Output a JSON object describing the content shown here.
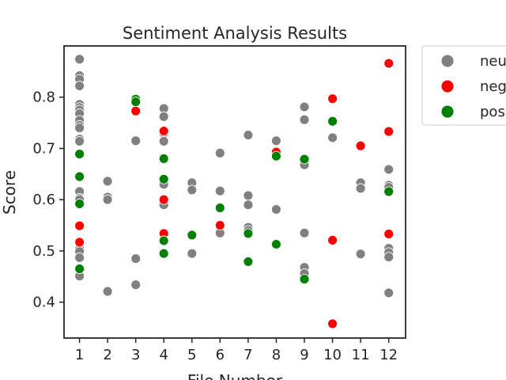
{
  "chart_data": {
    "type": "scatter",
    "title": "Sentiment Analysis Results",
    "xlabel": "File Number",
    "ylabel": "Score",
    "x_ticks": [
      1,
      2,
      3,
      4,
      5,
      6,
      7,
      8,
      9,
      10,
      11,
      12
    ],
    "y_ticks": [
      "0.4",
      "0.5",
      "0.6",
      "0.7",
      "0.8"
    ],
    "xlim": [
      0.45,
      12.6
    ],
    "ylim": [
      0.33,
      0.9
    ],
    "grid": false,
    "legend_position": "outside-upper-right",
    "colors": {
      "neu": "#808080",
      "neg": "#ff0000",
      "pos": "#008000"
    },
    "series": [
      {
        "name": "neu",
        "points": [
          [
            1,
            0.874
          ],
          [
            1,
            0.842
          ],
          [
            1,
            0.835
          ],
          [
            1,
            0.822
          ],
          [
            1,
            0.786
          ],
          [
            1,
            0.78
          ],
          [
            1,
            0.775
          ],
          [
            1,
            0.768
          ],
          [
            1,
            0.755
          ],
          [
            1,
            0.745
          ],
          [
            1,
            0.74
          ],
          [
            1,
            0.718
          ],
          [
            1,
            0.714
          ],
          [
            1,
            0.616
          ],
          [
            1,
            0.603
          ],
          [
            1,
            0.6
          ],
          [
            1,
            0.504
          ],
          [
            1,
            0.499
          ],
          [
            1,
            0.487
          ],
          [
            1,
            0.451
          ],
          [
            2,
            0.636
          ],
          [
            2,
            0.605
          ],
          [
            2,
            0.6
          ],
          [
            2,
            0.421
          ],
          [
            3,
            0.797
          ],
          [
            3,
            0.715
          ],
          [
            3,
            0.485
          ],
          [
            3,
            0.434
          ],
          [
            4,
            0.778
          ],
          [
            4,
            0.762
          ],
          [
            4,
            0.73
          ],
          [
            4,
            0.714
          ],
          [
            4,
            0.636
          ],
          [
            4,
            0.63
          ],
          [
            4,
            0.59
          ],
          [
            5,
            0.633
          ],
          [
            5,
            0.619
          ],
          [
            5,
            0.495
          ],
          [
            6,
            0.691
          ],
          [
            6,
            0.617
          ],
          [
            6,
            0.535
          ],
          [
            7,
            0.726
          ],
          [
            7,
            0.608
          ],
          [
            7,
            0.59
          ],
          [
            7,
            0.546
          ],
          [
            7,
            0.54
          ],
          [
            8,
            0.715
          ],
          [
            8,
            0.581
          ],
          [
            9,
            0.781
          ],
          [
            9,
            0.756
          ],
          [
            9,
            0.668
          ],
          [
            9,
            0.535
          ],
          [
            9,
            0.468
          ],
          [
            9,
            0.456
          ],
          [
            10,
            0.721
          ],
          [
            11,
            0.633
          ],
          [
            11,
            0.622
          ],
          [
            11,
            0.494
          ],
          [
            12,
            0.659
          ],
          [
            12,
            0.628
          ],
          [
            12,
            0.624
          ],
          [
            12,
            0.505
          ],
          [
            12,
            0.497
          ],
          [
            12,
            0.488
          ],
          [
            12,
            0.418
          ]
        ]
      },
      {
        "name": "neg",
        "points": [
          [
            1,
            0.549
          ],
          [
            1,
            0.517
          ],
          [
            3,
            0.773
          ],
          [
            4,
            0.734
          ],
          [
            4,
            0.6
          ],
          [
            4,
            0.534
          ],
          [
            6,
            0.55
          ],
          [
            8,
            0.693
          ],
          [
            10,
            0.797
          ],
          [
            10,
            0.521
          ],
          [
            10,
            0.358
          ],
          [
            11,
            0.705
          ],
          [
            12,
            0.866
          ],
          [
            12,
            0.733
          ],
          [
            12,
            0.533
          ]
        ]
      },
      {
        "name": "pos",
        "points": [
          [
            1,
            0.689
          ],
          [
            1,
            0.645
          ],
          [
            1,
            0.592
          ],
          [
            1,
            0.465
          ],
          [
            3,
            0.796
          ],
          [
            3,
            0.791
          ],
          [
            4,
            0.68
          ],
          [
            4,
            0.64
          ],
          [
            4,
            0.52
          ],
          [
            4,
            0.495
          ],
          [
            5,
            0.531
          ],
          [
            6,
            0.584
          ],
          [
            7,
            0.534
          ],
          [
            7,
            0.479
          ],
          [
            8,
            0.685
          ],
          [
            8,
            0.513
          ],
          [
            9,
            0.679
          ],
          [
            9,
            0.445
          ],
          [
            10,
            0.753
          ],
          [
            12,
            0.616
          ]
        ]
      }
    ]
  }
}
